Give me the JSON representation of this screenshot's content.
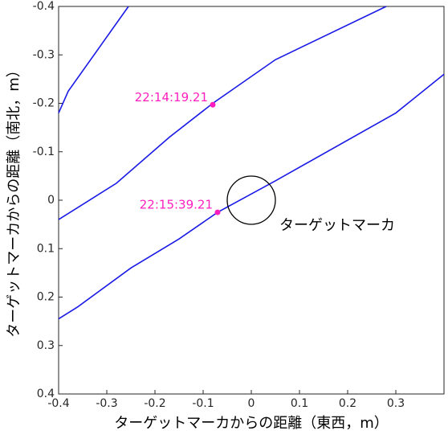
{
  "chart_data": {
    "type": "line",
    "xlabel": "ターゲットマーカからの距離（東西，m）",
    "ylabel": "ターゲットマーカからの距離（南北，m）",
    "xlim": [
      -0.4,
      0.4
    ],
    "ylim": [
      -0.4,
      0.4
    ],
    "y_reversed": true,
    "xticks": [
      -0.4,
      -0.3,
      -0.2,
      -0.1,
      0,
      0.1,
      0.2,
      0.3
    ],
    "yticks": [
      -0.4,
      -0.3,
      -0.2,
      -0.1,
      0,
      0.1,
      0.2,
      0.3,
      0.4
    ],
    "series": [
      {
        "color": "#1a1ae6",
        "x": [
          -0.4,
          -0.38,
          -0.255
        ],
        "values": [
          -0.18,
          -0.225,
          -0.4
        ]
      },
      {
        "color": "#1a1ae6",
        "x": [
          -0.4,
          -0.28,
          -0.17,
          -0.08,
          0.05,
          0.28
        ],
        "values": [
          0.04,
          -0.035,
          -0.13,
          -0.2,
          -0.29,
          -0.4
        ]
      },
      {
        "color": "#1a1ae6",
        "x": [
          -0.4,
          -0.36,
          -0.25,
          -0.15,
          -0.07,
          0.05,
          0.3,
          0.4
        ],
        "values": [
          0.245,
          0.22,
          0.14,
          0.08,
          0.025,
          -0.04,
          -0.18,
          -0.26
        ]
      }
    ],
    "points": [
      {
        "x": -0.08,
        "y": -0.197,
        "label": "22:14:19.21",
        "color": "#ff1fbf"
      },
      {
        "x": -0.07,
        "y": 0.025,
        "label": "22:15:39.21",
        "color": "#ff1fbf"
      }
    ],
    "marker_circle": {
      "x": 0,
      "y": 0,
      "radius": 0.05,
      "label": "ターゲットマーカ"
    }
  }
}
